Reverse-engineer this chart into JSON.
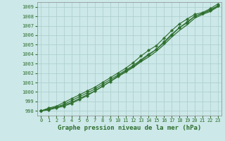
{
  "title": "",
  "xlabel": "Graphe pression niveau de la mer (hPa)",
  "bg_color": "#cce8e8",
  "grid_color": "#aacccc",
  "line_color": "#2d6e2d",
  "text_color": "#2d6e2d",
  "ylim": [
    997.5,
    1009.5
  ],
  "xlim": [
    -0.5,
    23.5
  ],
  "yticks": [
    998,
    999,
    1000,
    1001,
    1002,
    1003,
    1004,
    1005,
    1006,
    1007,
    1008,
    1009
  ],
  "xticks": [
    0,
    1,
    2,
    3,
    4,
    5,
    6,
    7,
    8,
    9,
    10,
    11,
    12,
    13,
    14,
    15,
    16,
    17,
    18,
    19,
    20,
    21,
    22,
    23
  ],
  "series": [
    {
      "y": [
        998.0,
        998.2,
        998.4,
        998.6,
        998.9,
        999.3,
        999.7,
        1000.1,
        1000.6,
        1001.1,
        1001.6,
        1002.1,
        1002.6,
        1003.2,
        1003.7,
        1004.3,
        1005.0,
        1005.8,
        1006.5,
        1007.1,
        1007.8,
        1008.2,
        1008.5,
        1009.0
      ],
      "marker": "none",
      "linewidth": 0.9,
      "smooth": true
    },
    {
      "y": [
        998.0,
        998.2,
        998.4,
        998.7,
        999.1,
        999.5,
        999.9,
        1000.3,
        1000.8,
        1001.3,
        1001.8,
        1002.3,
        1002.8,
        1003.4,
        1004.0,
        1004.5,
        1005.2,
        1006.0,
        1006.8,
        1007.4,
        1008.0,
        1008.3,
        1008.6,
        1009.1
      ],
      "marker": "P",
      "linewidth": 0.8,
      "smooth": false
    },
    {
      "y": [
        998.0,
        998.3,
        998.5,
        998.9,
        999.3,
        999.7,
        1000.1,
        1000.5,
        1001.0,
        1001.5,
        1002.0,
        1002.5,
        1003.1,
        1003.8,
        1004.4,
        1004.9,
        1005.7,
        1006.5,
        1007.2,
        1007.7,
        1008.2,
        1008.4,
        1008.8,
        1009.3
      ],
      "marker": "P",
      "linewidth": 0.8,
      "smooth": false
    },
    {
      "y": [
        998.0,
        998.1,
        998.3,
        998.5,
        998.8,
        999.2,
        999.6,
        1000.1,
        1000.6,
        1001.1,
        1001.7,
        1002.2,
        1002.7,
        1003.3,
        1003.9,
        1004.5,
        1005.3,
        1006.1,
        1006.8,
        1007.3,
        1008.0,
        1008.3,
        1008.7,
        1009.1
      ],
      "marker": "P",
      "linewidth": 0.8,
      "smooth": false
    }
  ],
  "markersize": 2.5,
  "xlabel_fontsize": 6.5,
  "tick_fontsize": 5.0
}
